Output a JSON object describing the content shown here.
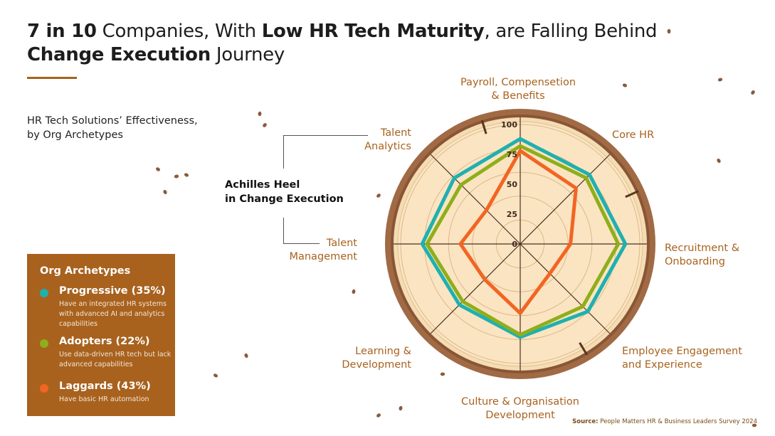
{
  "title": {
    "part1_bold": "7 in 10",
    "part2": " Companies, With ",
    "part3_bold": "Low HR Tech Maturity",
    "part4": ", are Falling Behind",
    "part5_bold": "Change Execution",
    "part6": " Journey"
  },
  "subtitle_line1": "HR Tech Solutions’ Effectiveness,",
  "subtitle_line2": "by Org Archetypes",
  "annotation_line1": "Achilles Heel",
  "annotation_line2": "in Change Execution",
  "legend": {
    "heading": "Org Archetypes",
    "items": [
      {
        "label": "Progressive (35%)",
        "desc": "Have an integrated HR systems with advanced AI and analytics capabilities",
        "color": "#1fb0b0"
      },
      {
        "label": "Adopters (22%)",
        "desc": "Use data-driven HR tech but lack advanced capabilities",
        "color": "#8fae1b"
      },
      {
        "label": "Laggards (43%)",
        "desc": "Have basic HR automation",
        "color": "#f26522"
      }
    ]
  },
  "source_label": "Source:",
  "source_text": " People Matters HR & Business Leaders Survey 2024",
  "chart_data": {
    "type": "radar",
    "axes": [
      [
        "Payroll, Compensetion",
        "& Benefits"
      ],
      [
        "Core HR"
      ],
      [
        "Recruitment &",
        "Onboarding"
      ],
      [
        "Employee Engagement",
        "and Experience"
      ],
      [
        "Culture & Organisation",
        "Development"
      ],
      [
        "Learning &",
        "Development"
      ],
      [
        "Talent",
        "Management"
      ],
      [
        "Talent",
        "Analytics"
      ]
    ],
    "rlim": [
      0,
      100
    ],
    "ticks": [
      0,
      25,
      50,
      75,
      100
    ],
    "series": [
      {
        "name": "Progressive (35%)",
        "color": "#1fb0b0",
        "values": [
          88,
          82,
          88,
          80,
          78,
          72,
          82,
          78
        ]
      },
      {
        "name": "Adopters (22%)",
        "color": "#8fae1b",
        "values": [
          82,
          78,
          82,
          74,
          76,
          68,
          78,
          70
        ]
      },
      {
        "name": "Laggards (43%)",
        "color": "#f26522",
        "values": [
          78,
          66,
          42,
          35,
          58,
          42,
          50,
          40
        ]
      }
    ],
    "colors": {
      "wood_bark": "#a06a45",
      "wood_ring": "#f4dcb4",
      "wood_core": "#fbe4c2"
    }
  }
}
